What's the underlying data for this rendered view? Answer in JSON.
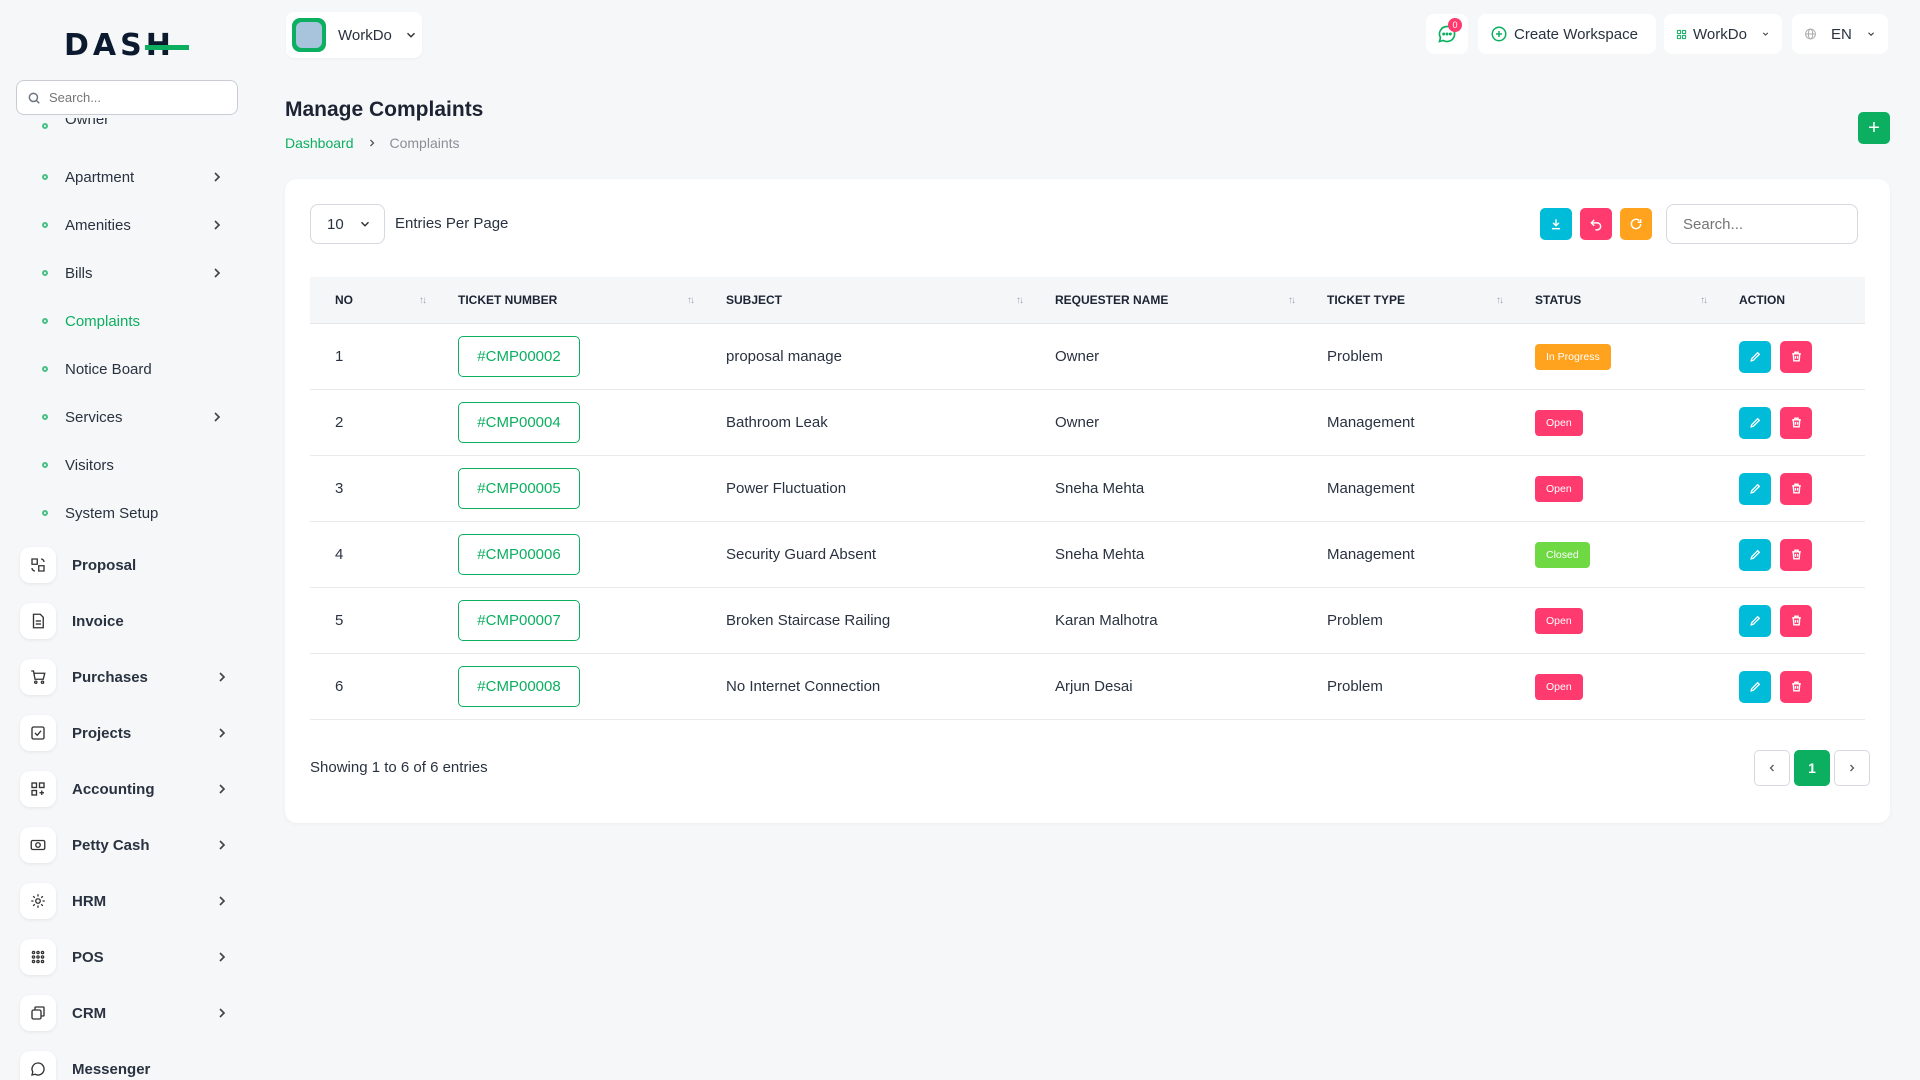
{
  "app": {
    "logo": "DASH"
  },
  "sidebar": {
    "search_placeholder": "Search...",
    "partial_item": "Owner",
    "sub_items": [
      {
        "label": "Apartment",
        "chevron": true,
        "active": false
      },
      {
        "label": "Amenities",
        "chevron": true,
        "active": false
      },
      {
        "label": "Bills",
        "chevron": true,
        "active": false
      },
      {
        "label": "Complaints",
        "chevron": false,
        "active": true
      },
      {
        "label": "Notice Board",
        "chevron": false,
        "active": false
      },
      {
        "label": "Services",
        "chevron": true,
        "active": false
      },
      {
        "label": "Visitors",
        "chevron": false,
        "active": false
      },
      {
        "label": "System Setup",
        "chevron": false,
        "active": false
      }
    ],
    "main_items": [
      {
        "label": "Proposal",
        "icon": "proposal-icon",
        "chevron": false
      },
      {
        "label": "Invoice",
        "icon": "invoice-icon",
        "chevron": false
      },
      {
        "label": "Purchases",
        "icon": "cart-icon",
        "chevron": true
      },
      {
        "label": "Projects",
        "icon": "projects-icon",
        "chevron": true
      },
      {
        "label": "Accounting",
        "icon": "accounting-icon",
        "chevron": true
      },
      {
        "label": "Petty Cash",
        "icon": "cash-icon",
        "chevron": true
      },
      {
        "label": "HRM",
        "icon": "hrm-icon",
        "chevron": true
      },
      {
        "label": "POS",
        "icon": "pos-icon",
        "chevron": true
      },
      {
        "label": "CRM",
        "icon": "crm-icon",
        "chevron": true
      },
      {
        "label": "Messenger",
        "icon": "messenger-icon",
        "chevron": false
      }
    ]
  },
  "topbar": {
    "workspace_label": "WorkDo",
    "messages_count": "0",
    "create_workspace": "Create Workspace",
    "workspace_menu": "WorkDo",
    "language": "EN"
  },
  "page": {
    "title": "Manage Complaints",
    "breadcrumb_home": "Dashboard",
    "breadcrumb_current": "Complaints",
    "add_label": "+"
  },
  "table": {
    "per_page": "10",
    "per_page_label": "Entries Per Page",
    "search_placeholder": "Search...",
    "columns": [
      "NO",
      "TICKET NUMBER",
      "SUBJECT",
      "REQUESTER NAME",
      "TICKET TYPE",
      "STATUS",
      "ACTION"
    ],
    "rows": [
      {
        "no": "1",
        "ticket": "#CMP00002",
        "subject": "proposal manage",
        "requester": "Owner",
        "type": "Problem",
        "status": "In Progress",
        "status_kind": "progress"
      },
      {
        "no": "2",
        "ticket": "#CMP00004",
        "subject": "Bathroom Leak",
        "requester": "Owner",
        "type": "Management",
        "status": "Open",
        "status_kind": "open"
      },
      {
        "no": "3",
        "ticket": "#CMP00005",
        "subject": "Power Fluctuation",
        "requester": "Sneha Mehta",
        "type": "Management",
        "status": "Open",
        "status_kind": "open"
      },
      {
        "no": "4",
        "ticket": "#CMP00006",
        "subject": "Security Guard Absent",
        "requester": "Sneha Mehta",
        "type": "Management",
        "status": "Closed",
        "status_kind": "closed"
      },
      {
        "no": "5",
        "ticket": "#CMP00007",
        "subject": "Broken Staircase Railing",
        "requester": "Karan Malhotra",
        "type": "Problem",
        "status": "Open",
        "status_kind": "open"
      },
      {
        "no": "6",
        "ticket": "#CMP00008",
        "subject": "No Internet Connection",
        "requester": "Arjun Desai",
        "type": "Problem",
        "status": "Open",
        "status_kind": "open"
      }
    ],
    "showing": "Showing 1 to 6 of 6 entries",
    "current_page": "1"
  },
  "colors": {
    "accent": "#0caf60",
    "info": "#00bcd8",
    "danger": "#ff3a6e",
    "warning": "#ffa21d",
    "success": "#6fd943"
  }
}
